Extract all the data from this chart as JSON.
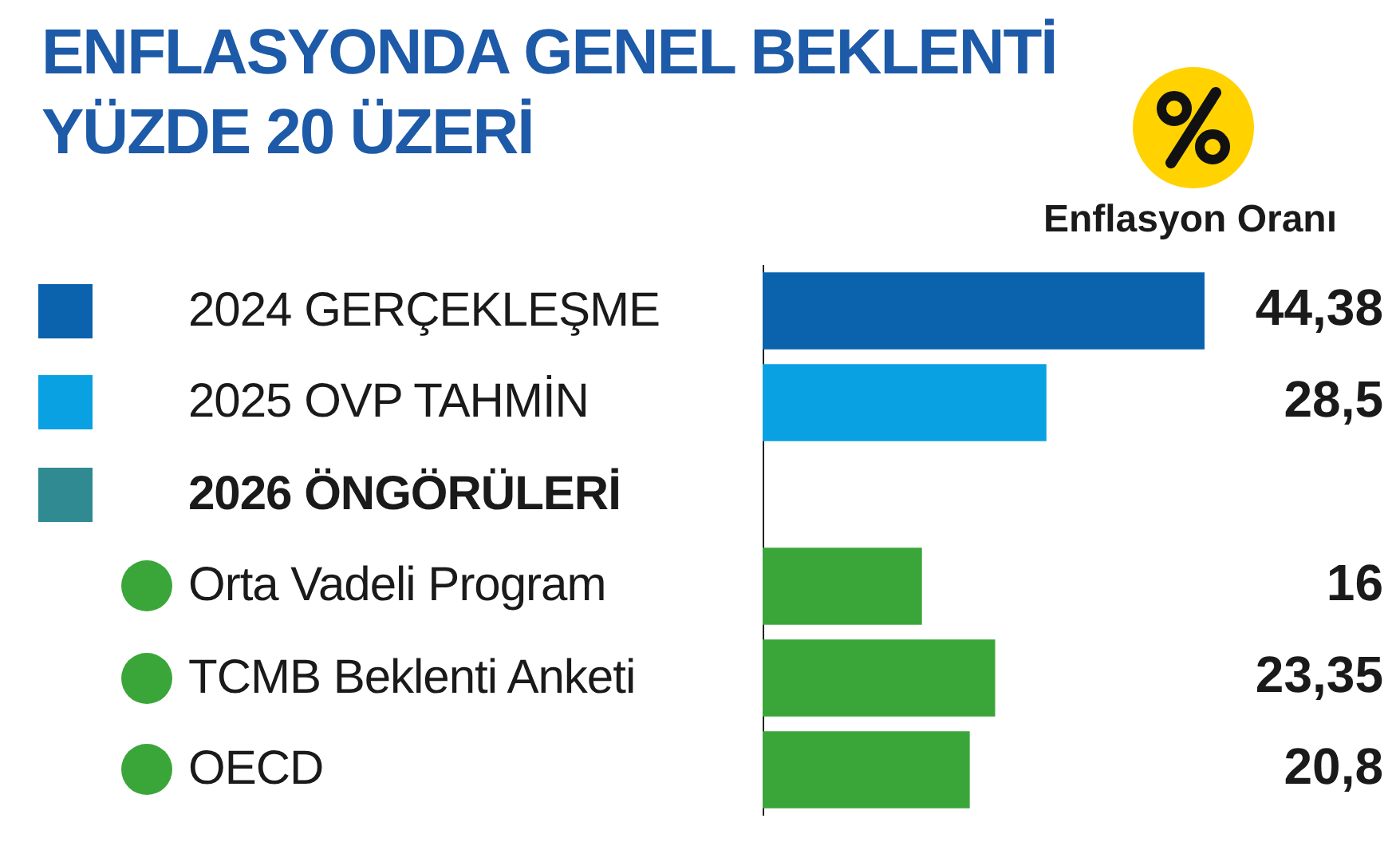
{
  "chart_data": {
    "type": "bar",
    "orientation": "horizontal",
    "title": "ENFLASYONDA GENEL BEKLENTİ YÜZDE 20 ÜZERİ",
    "xlabel": "Enflasyon Oranı",
    "categories": [
      "2024 GERÇEKLEŞME",
      "2025 OVP TAHMİN",
      "2026 ÖNGÖRÜLERİ",
      "Orta Vadeli Program",
      "TCMB Beklenti Anketi",
      "OECD"
    ],
    "values": [
      44.38,
      28.5,
      null,
      16,
      23.35,
      20.8
    ],
    "colors": [
      "#0b63ae",
      "#0aa1e2",
      "#2f8a92",
      "#3aa63a",
      "#3aa63a",
      "#3aa63a"
    ],
    "value_labels": [
      "44,38",
      "28,5",
      null,
      "16",
      "23,35",
      "20,8"
    ],
    "tick_labels": "y",
    "grid": false,
    "legend": false
  }
}
